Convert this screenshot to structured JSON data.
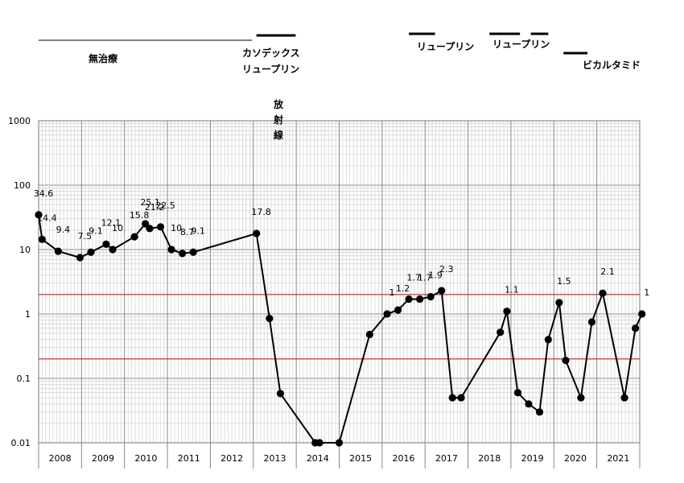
{
  "chart_data": {
    "type": "line",
    "yscale": "log",
    "ylim": [
      0.01,
      1000
    ],
    "y_tick_labels": [
      "1000",
      "100",
      "10",
      "1",
      "0.1",
      "0.01"
    ],
    "x_tick_labels": [
      "2008",
      "2009",
      "2010",
      "2011",
      "2012",
      "2013",
      "2014",
      "2015",
      "2016",
      "2017",
      "2018",
      "2019",
      "2020",
      "2021"
    ],
    "xlim": [
      2007.0,
      2020.8
    ],
    "grid": true,
    "reference_lines": [
      2.0,
      0.2
    ],
    "reference_line_color": "#cc0000",
    "series": [
      {
        "color": "#000000",
        "points": [
          {
            "x": 2007.0,
            "y": 34.6,
            "label": "34.6"
          },
          {
            "x": 2007.08,
            "y": 14.4,
            "label": "14.4"
          },
          {
            "x": 2007.45,
            "y": 9.4,
            "label": "9.4"
          },
          {
            "x": 2007.95,
            "y": 7.5,
            "label": "7.5"
          },
          {
            "x": 2008.2,
            "y": 9.1,
            "label": "9.1"
          },
          {
            "x": 2008.55,
            "y": 12.1,
            "label": "12.1"
          },
          {
            "x": 2008.7,
            "y": 10,
            "label": "10"
          },
          {
            "x": 2009.2,
            "y": 15.8,
            "label": "15.8"
          },
          {
            "x": 2009.45,
            "y": 25.1,
            "label": "25.1"
          },
          {
            "x": 2009.55,
            "y": 21.2,
            "label": "21.2"
          },
          {
            "x": 2009.8,
            "y": 22.5,
            "label": "22.5"
          },
          {
            "x": 2010.05,
            "y": 10,
            "label": "10"
          },
          {
            "x": 2010.3,
            "y": 8.7,
            "label": "8.7"
          },
          {
            "x": 2010.55,
            "y": 9.1,
            "label": "9.1"
          },
          {
            "x": 2012.0,
            "y": 17.8,
            "label": "17.8"
          },
          {
            "x": 2012.3,
            "y": 0.85
          },
          {
            "x": 2012.55,
            "y": 0.058
          },
          {
            "x": 2013.35,
            "y": 0.01
          },
          {
            "x": 2013.45,
            "y": 0.01
          },
          {
            "x": 2013.9,
            "y": 0.01
          },
          {
            "x": 2014.6,
            "y": 0.48
          },
          {
            "x": 2015.0,
            "y": 1.0,
            "label": "1"
          },
          {
            "x": 2015.25,
            "y": 1.15,
            "label": "1.2"
          },
          {
            "x": 2015.5,
            "y": 1.7,
            "label": "1.7"
          },
          {
            "x": 2015.75,
            "y": 1.7,
            "label": "1.7"
          },
          {
            "x": 2016.0,
            "y": 1.85,
            "label": "1.9"
          },
          {
            "x": 2016.25,
            "y": 2.3,
            "label": "2.3"
          },
          {
            "x": 2016.5,
            "y": 0.05
          },
          {
            "x": 2016.7,
            "y": 0.05
          },
          {
            "x": 2017.6,
            "y": 0.52
          },
          {
            "x": 2017.75,
            "y": 1.1,
            "label": "1.1"
          },
          {
            "x": 2018.0,
            "y": 0.06
          },
          {
            "x": 2018.25,
            "y": 0.04
          },
          {
            "x": 2018.5,
            "y": 0.03
          },
          {
            "x": 2018.7,
            "y": 0.4
          },
          {
            "x": 2018.95,
            "y": 1.5,
            "label": "1.5"
          },
          {
            "x": 2019.1,
            "y": 0.19
          },
          {
            "x": 2019.45,
            "y": 0.05
          },
          {
            "x": 2019.7,
            "y": 0.75
          },
          {
            "x": 2019.95,
            "y": 2.1,
            "label": "2.1"
          },
          {
            "x": 2020.45,
            "y": 0.05
          },
          {
            "x": 2020.7,
            "y": 0.6
          },
          {
            "x": 2020.85,
            "y": 1.0,
            "label": "1"
          }
        ]
      }
    ],
    "treatments": [
      {
        "label": "無治療",
        "start": 2007.0,
        "end": 2011.9
      },
      {
        "label": "カソデックス\nリュープリン",
        "start": 2012.0,
        "end": 2012.9
      },
      {
        "label": "放\n射\n線"
      },
      {
        "label": "リュープリン",
        "start": 2015.5,
        "end": 2016.1
      },
      {
        "label": "リュープリン",
        "start": 2017.35,
        "end": 2018.05
      },
      {
        "label": "",
        "start": 2018.3,
        "end": 2018.7
      },
      {
        "label": "ビカルタミド",
        "start": 2019.05,
        "end": 2019.6
      }
    ]
  }
}
